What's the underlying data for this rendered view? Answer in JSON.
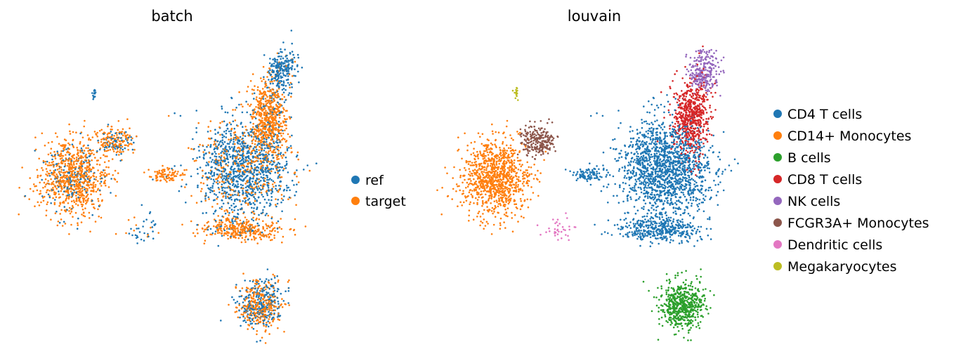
{
  "chart_data": [
    {
      "type": "scatter",
      "title": "batch",
      "xlabel": "",
      "ylabel": "",
      "axes_visible": false,
      "grid": false,
      "legend_position": "right",
      "x_range": [
        0,
        1
      ],
      "y_range": [
        0,
        1
      ],
      "series": [
        {
          "name": "ref",
          "color": "#1f77b4"
        },
        {
          "name": "target",
          "color": "#ff7f0e"
        }
      ],
      "clusters": [
        {
          "cx": 0.17,
          "cy": 0.54,
          "sx": 0.055,
          "sy": 0.065,
          "n": 900,
          "mix": {
            "target": 0.82,
            "ref": 0.18
          }
        },
        {
          "cx": 0.31,
          "cy": 0.66,
          "sx": 0.03,
          "sy": 0.025,
          "n": 200,
          "mix": {
            "target": 0.75,
            "ref": 0.25
          }
        },
        {
          "cx": 0.73,
          "cy": 0.57,
          "sx": 0.075,
          "sy": 0.075,
          "n": 1300,
          "mix": {
            "ref": 0.72,
            "target": 0.28
          }
        },
        {
          "cx": 0.72,
          "cy": 0.37,
          "sx": 0.07,
          "sy": 0.02,
          "n": 350,
          "mix": {
            "target": 0.9,
            "ref": 0.1
          }
        },
        {
          "cx": 0.82,
          "cy": 0.74,
          "sx": 0.03,
          "sy": 0.06,
          "n": 600,
          "mix": {
            "target": 0.88,
            "ref": 0.12
          }
        },
        {
          "cx": 0.86,
          "cy": 0.89,
          "sx": 0.025,
          "sy": 0.035,
          "n": 250,
          "mix": {
            "ref": 0.95,
            "target": 0.05
          }
        },
        {
          "cx": 0.79,
          "cy": 0.12,
          "sx": 0.035,
          "sy": 0.04,
          "n": 550,
          "mix": {
            "target": 0.55,
            "ref": 0.45
          }
        },
        {
          "cx": 0.48,
          "cy": 0.55,
          "sx": 0.03,
          "sy": 0.012,
          "n": 90,
          "mix": {
            "target": 0.95,
            "ref": 0.05
          }
        },
        {
          "cx": 0.24,
          "cy": 0.82,
          "sx": 0.0035,
          "sy": 0.012,
          "n": 18,
          "mix": {
            "ref": 1.0
          }
        },
        {
          "cx": 0.4,
          "cy": 0.37,
          "sx": 0.03,
          "sy": 0.03,
          "n": 40,
          "mix": {
            "ref": 0.8,
            "target": 0.2
          }
        }
      ]
    },
    {
      "type": "scatter",
      "title": "louvain",
      "xlabel": "",
      "ylabel": "",
      "axes_visible": false,
      "grid": false,
      "legend_position": "right",
      "x_range": [
        0,
        1
      ],
      "y_range": [
        0,
        1
      ],
      "series": [
        {
          "name": "CD4 T cells",
          "color": "#1f77b4"
        },
        {
          "name": "CD14+ Monocytes",
          "color": "#ff7f0e"
        },
        {
          "name": "B cells",
          "color": "#2ca02c"
        },
        {
          "name": "CD8 T cells",
          "color": "#d62728"
        },
        {
          "name": "NK cells",
          "color": "#9467bd"
        },
        {
          "name": "FCGR3A+ Monocytes",
          "color": "#8c564b"
        },
        {
          "name": "Dendritic cells",
          "color": "#e377c2"
        },
        {
          "name": "Megakaryocytes",
          "color": "#bcbd22"
        }
      ],
      "clusters": [
        {
          "cx": 0.17,
          "cy": 0.54,
          "sx": 0.055,
          "sy": 0.065,
          "n": 1000,
          "mix": {
            "CD14+ Monocytes": 1.0
          }
        },
        {
          "cx": 0.31,
          "cy": 0.66,
          "sx": 0.028,
          "sy": 0.025,
          "n": 230,
          "mix": {
            "FCGR3A+ Monocytes": 1.0
          }
        },
        {
          "cx": 0.73,
          "cy": 0.57,
          "sx": 0.075,
          "sy": 0.075,
          "n": 1500,
          "mix": {
            "CD4 T cells": 1.0
          }
        },
        {
          "cx": 0.72,
          "cy": 0.37,
          "sx": 0.07,
          "sy": 0.02,
          "n": 400,
          "mix": {
            "CD4 T cells": 1.0
          }
        },
        {
          "cx": 0.82,
          "cy": 0.74,
          "sx": 0.03,
          "sy": 0.06,
          "n": 650,
          "mix": {
            "CD8 T cells": 1.0
          }
        },
        {
          "cx": 0.86,
          "cy": 0.89,
          "sx": 0.025,
          "sy": 0.035,
          "n": 250,
          "mix": {
            "NK cells": 1.0
          }
        },
        {
          "cx": 0.79,
          "cy": 0.12,
          "sx": 0.035,
          "sy": 0.04,
          "n": 600,
          "mix": {
            "B cells": 1.0
          }
        },
        {
          "cx": 0.48,
          "cy": 0.55,
          "sx": 0.03,
          "sy": 0.012,
          "n": 90,
          "mix": {
            "CD4 T cells": 1.0
          }
        },
        {
          "cx": 0.24,
          "cy": 0.82,
          "sx": 0.0035,
          "sy": 0.012,
          "n": 18,
          "mix": {
            "Megakaryocytes": 1.0
          }
        },
        {
          "cx": 0.39,
          "cy": 0.37,
          "sx": 0.025,
          "sy": 0.02,
          "n": 35,
          "mix": {
            "Dendritic cells": 1.0
          }
        }
      ]
    }
  ]
}
